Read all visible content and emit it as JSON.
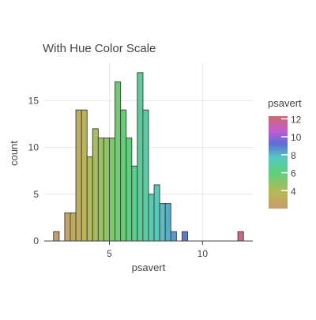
{
  "chart_data": {
    "type": "bar",
    "title": "With Hue Color Scale",
    "xlabel": "psavert",
    "ylabel": "count",
    "xlim": [
      1.5,
      12.7
    ],
    "ylim": [
      0,
      19
    ],
    "x_ticks": [
      5,
      10
    ],
    "x_tick_labels": [
      "5",
      "10"
    ],
    "y_ticks": [
      0,
      5,
      10,
      15
    ],
    "y_tick_labels": [
      "0",
      "5",
      "10",
      "15"
    ],
    "bin_width": 0.3,
    "bins": [
      {
        "x0": 2.0,
        "x1": 2.3,
        "count": 1
      },
      {
        "x0": 2.3,
        "x1": 2.6,
        "count": 0
      },
      {
        "x0": 2.6,
        "x1": 2.9,
        "count": 3
      },
      {
        "x0": 2.9,
        "x1": 3.2,
        "count": 3
      },
      {
        "x0": 3.2,
        "x1": 3.5,
        "count": 14
      },
      {
        "x0": 3.5,
        "x1": 3.8,
        "count": 14
      },
      {
        "x0": 3.8,
        "x1": 4.1,
        "count": 9
      },
      {
        "x0": 4.1,
        "x1": 4.4,
        "count": 12
      },
      {
        "x0": 4.4,
        "x1": 4.7,
        "count": 11
      },
      {
        "x0": 4.7,
        "x1": 5.0,
        "count": 11
      },
      {
        "x0": 5.0,
        "x1": 5.3,
        "count": 11
      },
      {
        "x0": 5.3,
        "x1": 5.6,
        "count": 17
      },
      {
        "x0": 5.6,
        "x1": 5.9,
        "count": 14
      },
      {
        "x0": 5.9,
        "x1": 6.2,
        "count": 11
      },
      {
        "x0": 6.2,
        "x1": 6.5,
        "count": 8
      },
      {
        "x0": 6.5,
        "x1": 6.8,
        "count": 18
      },
      {
        "x0": 6.8,
        "x1": 7.1,
        "count": 14
      },
      {
        "x0": 7.1,
        "x1": 7.4,
        "count": 5
      },
      {
        "x0": 7.4,
        "x1": 7.7,
        "count": 6
      },
      {
        "x0": 7.7,
        "x1": 8.0,
        "count": 4
      },
      {
        "x0": 8.0,
        "x1": 8.3,
        "count": 4
      },
      {
        "x0": 8.3,
        "x1": 8.6,
        "count": 1
      },
      {
        "x0": 8.6,
        "x1": 8.9,
        "count": 0
      },
      {
        "x0": 8.9,
        "x1": 9.2,
        "count": 1
      },
      {
        "x0": 9.2,
        "x1": 9.5,
        "count": 0
      },
      {
        "x0": 9.5,
        "x1": 11.9,
        "count": 0
      },
      {
        "x0": 11.9,
        "x1": 12.2,
        "count": 1
      }
    ],
    "colorbar": {
      "title": "psavert",
      "min": 2,
      "max": 12.3,
      "ticks": [
        4,
        6,
        8,
        10,
        12
      ],
      "tick_labels": [
        "4",
        "6",
        "8",
        "10",
        "12"
      ],
      "scale": [
        [
          0.0,
          "#c89b6a"
        ],
        [
          0.18,
          "#b8b857"
        ],
        [
          0.38,
          "#5ed17a"
        ],
        [
          0.55,
          "#55c9c1"
        ],
        [
          0.7,
          "#5b6ed8"
        ],
        [
          0.84,
          "#c25ad1"
        ],
        [
          1.0,
          "#d06a6a"
        ]
      ]
    }
  }
}
